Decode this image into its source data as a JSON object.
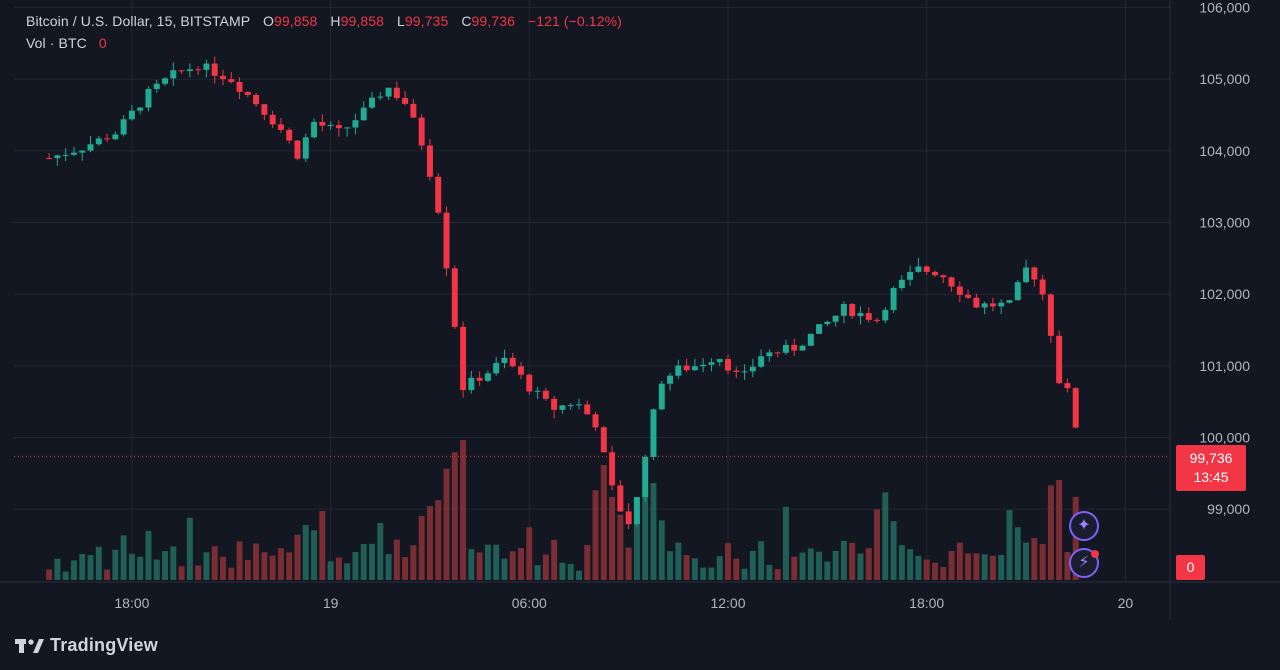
{
  "legend": {
    "symbol": "Bitcoin / U.S. Dollar, 15, BITSTAMP",
    "open_label": "O",
    "open": "99,858",
    "high_label": "H",
    "high": "99,858",
    "low_label": "L",
    "low": "99,735",
    "close_label": "C",
    "close": "99,736",
    "change": "−121 (−0.12%)",
    "volume_label": "Vol · BTC",
    "volume_value": "0"
  },
  "price_tag": {
    "price": "99,736",
    "countdown": "13:45"
  },
  "volume_tag": "0",
  "brand": "TradingView",
  "colors": {
    "up": "#22ab94",
    "down": "#f23645",
    "up_vol": "#1f5f57",
    "down_vol": "#7a2d33",
    "background": "#131722",
    "grid": "#232733"
  },
  "icons": [
    "sparkle-icon",
    "lightning-icon",
    "tradingview-logo-icon"
  ],
  "chart_data": {
    "type": "candlestick",
    "interval_minutes": 15,
    "y_axis_ticks": [
      "99,000",
      "100,000",
      "101,000",
      "102,000",
      "103,000",
      "104,000",
      "105,000",
      "106,000"
    ],
    "y_axis_values": [
      99000,
      100000,
      101000,
      102000,
      103000,
      104000,
      105000,
      106000
    ],
    "ylim": [
      98500,
      106050
    ],
    "x_axis_ticks": [
      "18:00",
      "19",
      "06:00",
      "12:00",
      "18:00",
      "20"
    ],
    "last_price": 99736,
    "waypoints": {
      "comment": "",
      "time_hours": [
        15.5,
        16.5,
        17.5,
        18.5,
        19.2,
        20.0,
        21.0,
        21.8,
        22.5,
        23.0,
        23.5,
        24.3,
        25.0,
        25.7,
        26.3,
        26.8,
        27.2,
        27.6,
        28.0,
        28.7,
        29.3,
        30.0,
        30.7,
        31.4,
        32.0,
        32.6,
        33.1,
        33.6,
        34.0,
        34.5,
        35.0,
        35.7,
        36.4,
        37.0,
        38.0,
        39.0,
        39.5,
        40.5,
        41.0,
        41.7,
        42.4,
        43.0,
        43.5,
        44.5,
        45.0,
        45.4,
        45.7,
        46.0,
        46.3,
        46.7
      ],
      "price": [
        103900,
        104050,
        104250,
        104800,
        105050,
        105200,
        105000,
        104650,
        104300,
        103950,
        104400,
        104250,
        104550,
        104900,
        104650,
        104050,
        103350,
        102100,
        100700,
        100900,
        101100,
        100700,
        100400,
        100500,
        100200,
        99100,
        98750,
        100050,
        100800,
        100950,
        101000,
        101150,
        100800,
        101150,
        101250,
        101600,
        101800,
        101650,
        102050,
        102350,
        102300,
        102050,
        101850,
        101850,
        102350,
        102200,
        101600,
        100800,
        100600,
        99736
      ]
    }
  }
}
